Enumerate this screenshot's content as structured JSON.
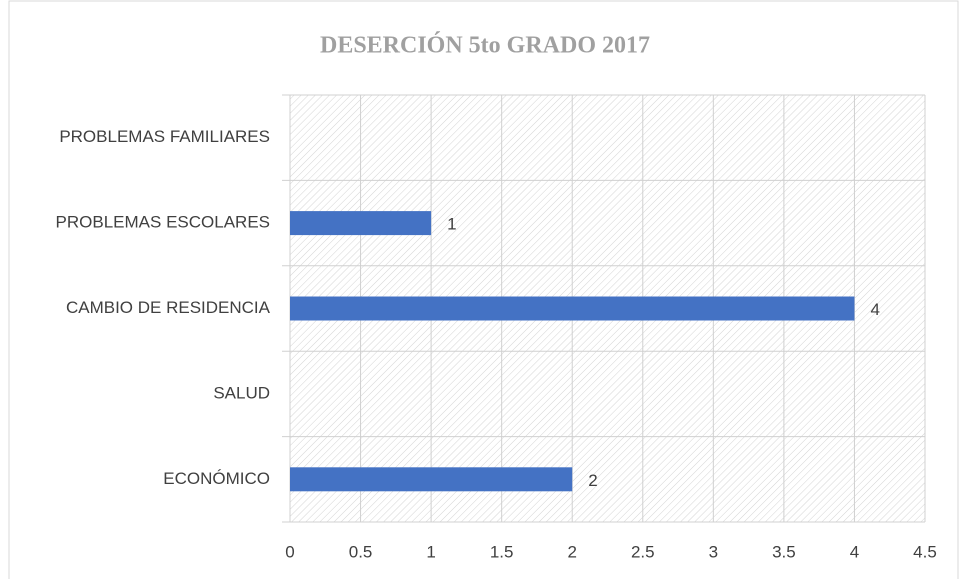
{
  "chart_data": {
    "type": "bar",
    "orientation": "horizontal",
    "title": "DESERCIÓN 5to GRADO 2017",
    "categories": [
      "ECONÓMICO",
      "SALUD",
      "CAMBIO DE RESIDENCIA",
      "PROBLEMAS ESCOLARES",
      "PROBLEMAS FAMILIARES"
    ],
    "values": [
      2,
      null,
      4,
      1,
      null
    ],
    "color": "#4472c4",
    "xlim": [
      0,
      4.5
    ],
    "xticks": [
      0,
      0.5,
      1,
      1.5,
      2,
      2.5,
      3,
      3.5,
      4,
      4.5
    ],
    "grid": true
  }
}
